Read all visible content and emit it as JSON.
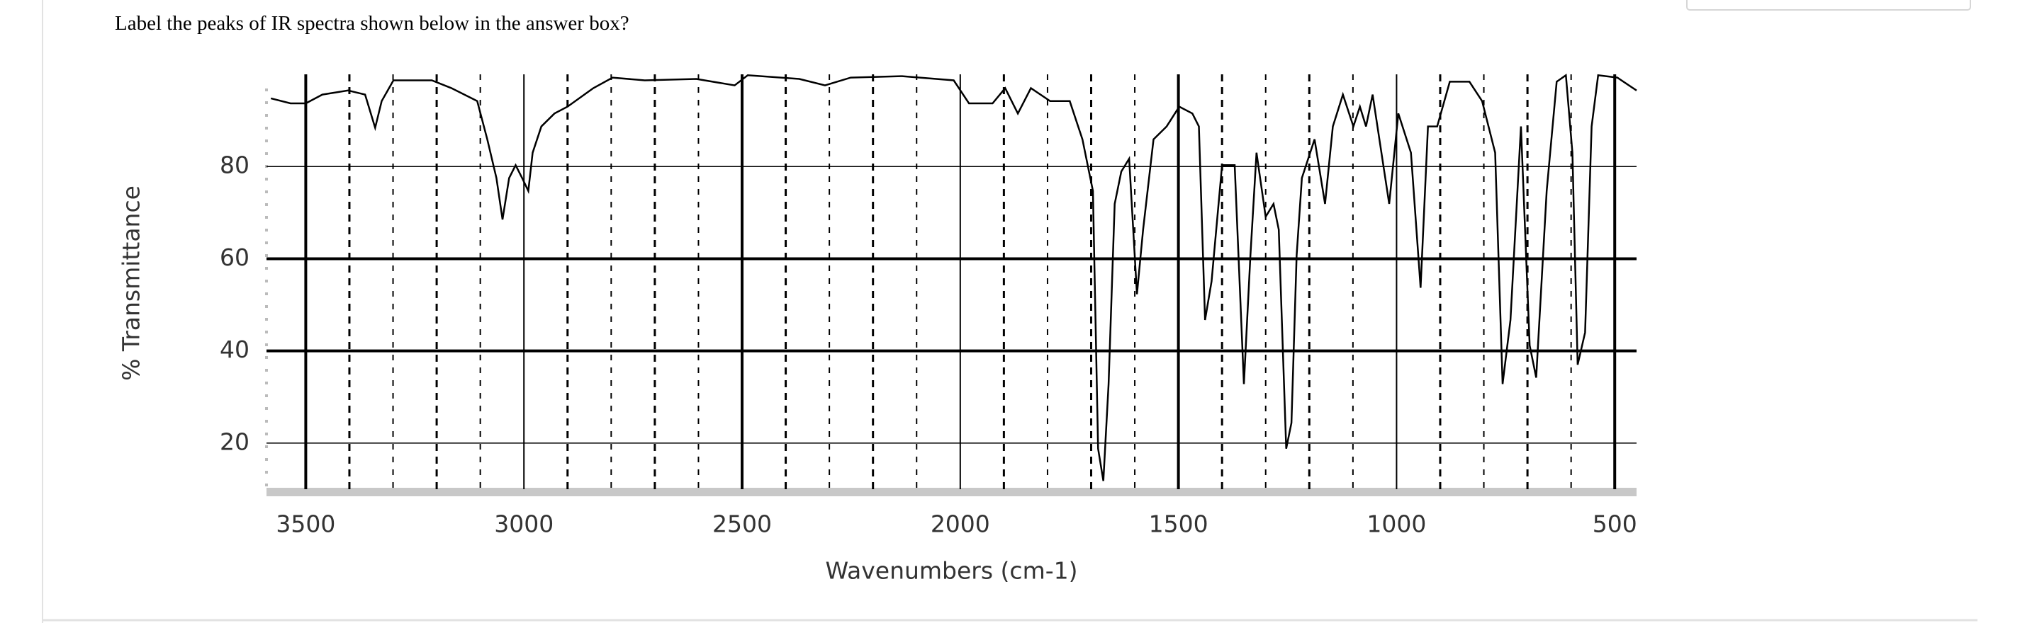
{
  "question": "Label the peaks of IR spectra shown below in the answer box?",
  "chart_data": {
    "type": "line",
    "xlabel": "Wavenumbers (cm-1)",
    "ylabel": "% Transmittance",
    "color": "#000000",
    "xlim": [
      3590,
      450
    ],
    "ylim": [
      10,
      100
    ],
    "xticks": [
      3500,
      3000,
      2500,
      2000,
      1500,
      1000,
      500
    ],
    "yticks": [
      20,
      40,
      60,
      80
    ],
    "grid": true,
    "x": [
      3580,
      3535,
      3500,
      3462,
      3403,
      3364,
      3341,
      3326,
      3299,
      3211,
      3166,
      3107,
      3084,
      3063,
      3049,
      3034,
      3019,
      3004,
      2990,
      2980,
      2960,
      2930,
      2900,
      2841,
      2797,
      2723,
      2605,
      2517,
      2487,
      2369,
      2310,
      2251,
      2133,
      2015,
      1980,
      1926,
      1897,
      1868,
      1838,
      1794,
      1749,
      1720,
      1696,
      1684,
      1672,
      1660,
      1646,
      1631,
      1613,
      1595,
      1581,
      1557,
      1527,
      1498,
      1468,
      1453,
      1439,
      1424,
      1400,
      1371,
      1350,
      1335,
      1321,
      1300,
      1282,
      1270,
      1253,
      1241,
      1229,
      1217,
      1188,
      1164,
      1146,
      1123,
      1099,
      1084,
      1070,
      1055,
      1017,
      996,
      967,
      945,
      928,
      907,
      878,
      833,
      804,
      774,
      757,
      739,
      715,
      695,
      680,
      656,
      633,
      612,
      597,
      585,
      568,
      553,
      538,
      494,
      450
    ],
    "values": [
      94.8,
      93.7,
      93.7,
      95.6,
      96.5,
      95.6,
      88.4,
      94.2,
      98.7,
      98.7,
      97,
      94.2,
      85.9,
      77.5,
      68.5,
      77.5,
      80.3,
      77.5,
      74.7,
      83,
      88.7,
      91.5,
      93,
      97,
      99.3,
      98.7,
      99,
      97.6,
      99.8,
      99,
      97.6,
      99.3,
      99.6,
      98.7,
      93.7,
      93.7,
      97,
      91.5,
      97,
      94.2,
      94.2,
      85.9,
      74.7,
      18.8,
      11.8,
      32.8,
      71.9,
      78.9,
      81.7,
      52.3,
      66.3,
      85.9,
      88.7,
      93,
      91.5,
      88.7,
      46.7,
      55.1,
      80.3,
      80.3,
      32.8,
      60.7,
      83,
      69.1,
      71.9,
      66.3,
      18.8,
      24.4,
      60.7,
      77.5,
      85.9,
      71.9,
      88.7,
      95.6,
      88.7,
      93,
      88.7,
      95.6,
      71.9,
      91.5,
      83,
      53.7,
      88.7,
      88.7,
      98.4,
      98.4,
      94.2,
      83,
      32.8,
      46.7,
      88.7,
      41.2,
      34.2,
      74.7,
      98.4,
      99.8,
      83,
      37,
      44,
      88.7,
      99.8,
      99.3,
      96.5
    ]
  }
}
